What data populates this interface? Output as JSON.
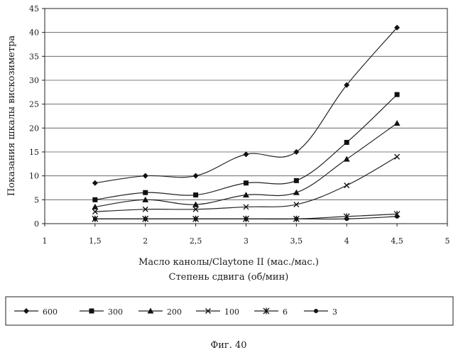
{
  "chart_data": {
    "type": "line",
    "xlabel": "Масло канолы/Claytone II (мас./мас.)",
    "xlabel2": "Степень сдвига (об/мин)",
    "ylabel": "Показания шкалы вискозиметра",
    "xlim": [
      1,
      5
    ],
    "ylim": [
      0,
      45
    ],
    "xticks": [
      1,
      1.5,
      2,
      2.5,
      3,
      3.5,
      4,
      4.5,
      5
    ],
    "xtick_labels": [
      "1",
      "1,5",
      "2",
      "2,5",
      "3",
      "3,5",
      "4",
      "4,5",
      "5"
    ],
    "yticks": [
      0,
      5,
      10,
      15,
      20,
      25,
      30,
      35,
      40,
      45
    ],
    "ytick_labels": [
      "0",
      "5",
      "10",
      "15",
      "20",
      "25",
      "30",
      "35",
      "40",
      "45"
    ],
    "grid": true,
    "legend_position": "bottom",
    "x": [
      1.5,
      2,
      2.5,
      3,
      3.5,
      4,
      4.5
    ],
    "series": [
      {
        "name": "600",
        "marker": "diamond",
        "values": [
          8.5,
          10,
          10,
          14.5,
          15,
          29,
          41
        ]
      },
      {
        "name": "300",
        "marker": "square",
        "values": [
          5,
          6.5,
          6,
          8.5,
          9,
          17,
          27
        ]
      },
      {
        "name": "200",
        "marker": "triangle",
        "values": [
          3.5,
          5,
          4,
          6,
          6.5,
          13.5,
          21
        ]
      },
      {
        "name": "100",
        "marker": "x",
        "values": [
          2.5,
          3,
          3,
          3.5,
          4,
          8,
          14
        ]
      },
      {
        "name": "6",
        "marker": "star",
        "values": [
          1,
          1,
          1,
          1,
          1,
          1.5,
          2
        ]
      },
      {
        "name": "3",
        "marker": "circle",
        "values": [
          1,
          1,
          1,
          1,
          1,
          1,
          1.5
        ]
      }
    ],
    "caption": "Фиг. 40"
  }
}
